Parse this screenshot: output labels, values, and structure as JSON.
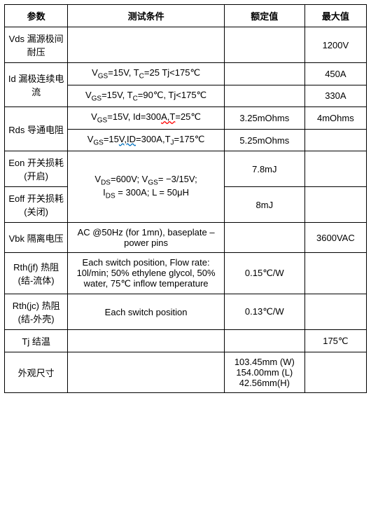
{
  "headers": {
    "param": "参数",
    "cond": "测试条件",
    "rated": "额定值",
    "max": "最大值"
  },
  "rows": {
    "vds": {
      "param": "Vds 漏源极间耐压",
      "cond": "",
      "rated": "",
      "max": "1200V"
    },
    "id": {
      "param": "Id 漏极连续电流",
      "cond1_a": "V",
      "cond1_b": "=15V, T",
      "cond1_c": "=25 Tj<175℃",
      "max1": "450A",
      "cond2_a": "V",
      "cond2_b": "=15V, T",
      "cond2_c": "=90℃, Tj<175℃",
      "max2": "330A"
    },
    "rds": {
      "param": "Rds 导通电阻",
      "cond1_a": "V",
      "cond1_b": "=15V, Id=300",
      "cond1_c": "A,T",
      "cond1_d": "=25℃",
      "rated1": "3.25mOhms",
      "max1": "4mOhms",
      "cond2_a": "V",
      "cond2_b": "=15",
      "cond2_c": "V,ID",
      "cond2_d": "=300A,T",
      "cond2_e": "=175℃",
      "rated2": "5.25mOhms"
    },
    "eon": {
      "param": "Eon 开关损耗(开启)",
      "rated": "7.8mJ",
      "cond_line1_a": "V",
      "cond_line1_b": "=600V; V",
      "cond_line1_c": "= −3/15V;",
      "cond_line2_a": "I",
      "cond_line2_b": " = 300A; L = 50μH"
    },
    "eoff": {
      "param": "Eoff 开关损耗(关闭)",
      "rated": "8mJ"
    },
    "vbk": {
      "param": "Vbk 隔离电压",
      "cond": "AC @50Hz (for 1mn), baseplate – power pins",
      "max": "3600VAC"
    },
    "rthjf": {
      "param": "Rth(jf) 热阻(结-流体)",
      "cond": "Each switch position, Flow rate: 10l/min; 50% ethylene glycol, 50% water, 75℃ inflow temperature",
      "rated": "0.15℃/W"
    },
    "rthjc": {
      "param": "Rth(jc) 热阻(结-外壳)",
      "cond": "Each switch position",
      "rated": "0.13℃/W"
    },
    "tj": {
      "param": "Tj 结温",
      "max": "175℃"
    },
    "dim": {
      "param": "外观尺寸",
      "rated": "103.45mm (W) 154.00mm (L) 42.56mm(H)"
    }
  },
  "subs": {
    "gs": "GS",
    "c": "C",
    "j": "J",
    "ds": "DS"
  }
}
